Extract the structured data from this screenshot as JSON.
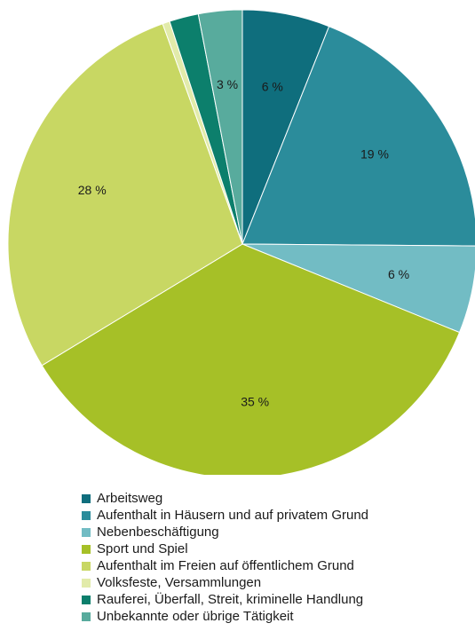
{
  "chart_data": {
    "type": "pie",
    "title": "",
    "legend_position": "bottom",
    "slices": [
      {
        "name": "Arbeitsweg",
        "value": 6,
        "label": "6 %",
        "color": "#0f6e7d"
      },
      {
        "name": "Aufenthalt in Häusern und auf privatem Grund",
        "value": 19,
        "label": "19 %",
        "color": "#2b8c9b"
      },
      {
        "name": "Nebenbeschäftigung",
        "value": 6,
        "label": "6 %",
        "color": "#72bcc4"
      },
      {
        "name": "Sport und Spiel",
        "value": 35,
        "label": "35 %",
        "color": "#a6c027"
      },
      {
        "name": "Aufenthalt im Freien auf öffentlichem Grund",
        "value": 28,
        "label": "28 %",
        "color": "#c8d763"
      },
      {
        "name": "Volksfeste, Versammlungen",
        "value": 0.5,
        "label": "",
        "color": "#e2ebaa"
      },
      {
        "name": "Rauferei, Überfall, Streit, kriminelle Handlung",
        "value": 2,
        "label": "",
        "color": "#0c7f6c"
      },
      {
        "name": "Unbekannte oder übrige Tätigkeit",
        "value": 3,
        "label": "3 %",
        "color": "#58ab9d"
      }
    ]
  }
}
